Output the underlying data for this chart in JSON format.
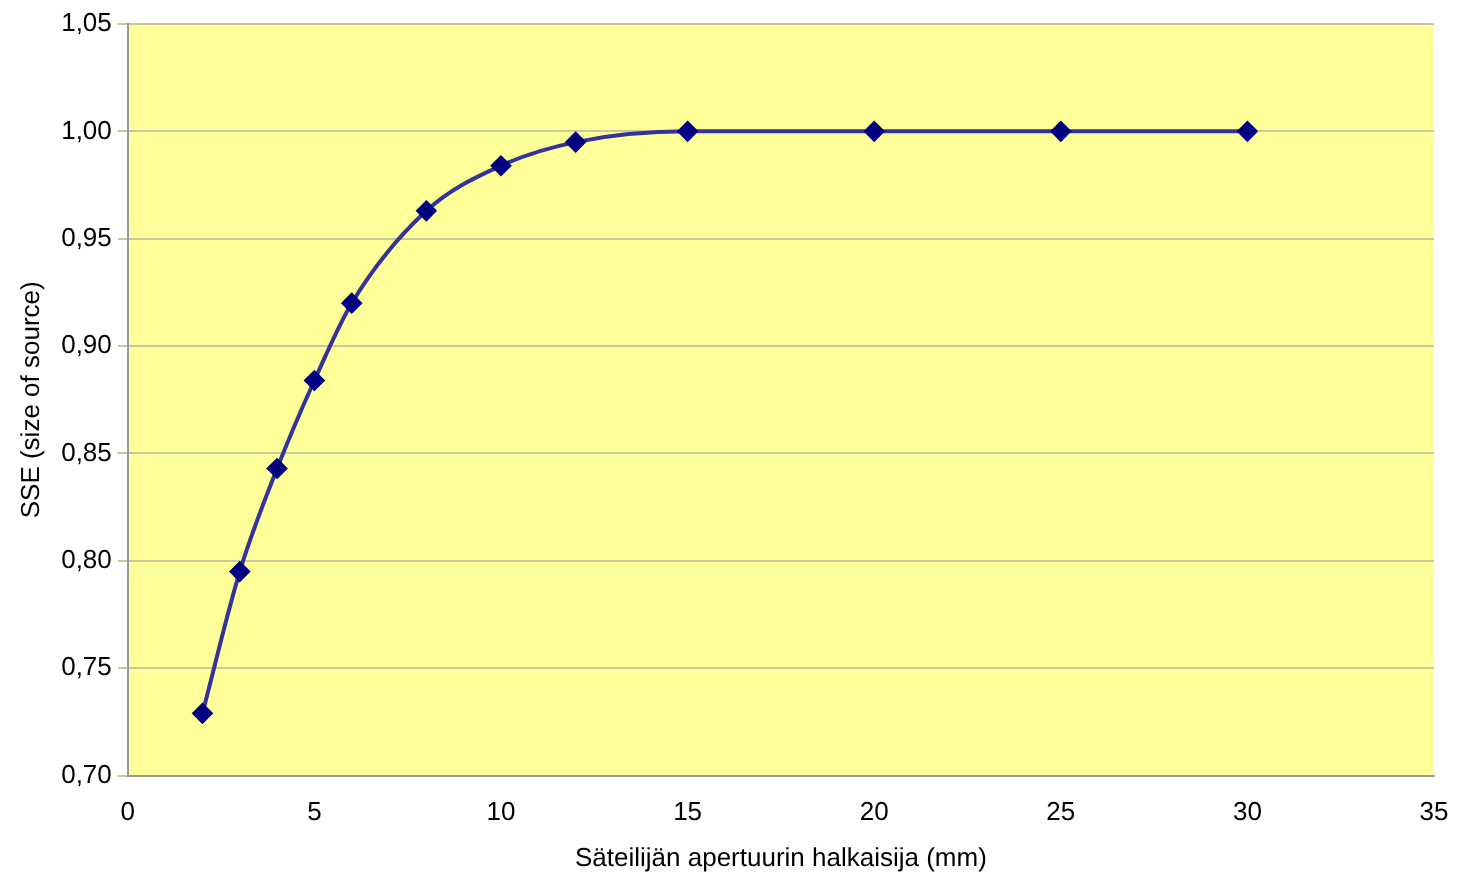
{
  "chart_data": {
    "type": "line",
    "xlabel": "Säteilijän apertuurin halkaisija (mm)",
    "ylabel": "SSE (size of source)",
    "x": [
      2,
      3,
      4,
      5,
      6,
      8,
      10,
      12,
      15,
      20,
      25,
      30
    ],
    "series": [
      {
        "color": "#333399",
        "values": [
          0.729,
          0.795,
          0.843,
          0.884,
          0.92,
          0.963,
          0.984,
          0.995,
          1.0,
          1.0,
          1.0,
          1.0
        ]
      }
    ],
    "xlim": [
      0,
      35
    ],
    "xticks": [
      0,
      5,
      10,
      15,
      20,
      25,
      30,
      35
    ],
    "ylim": [
      0.7,
      1.05
    ],
    "yticks": [
      {
        "value": 0.7,
        "label": "0,70"
      },
      {
        "value": 0.75,
        "label": "0,75"
      },
      {
        "value": 0.8,
        "label": "0,80"
      },
      {
        "value": 0.85,
        "label": "0,85"
      },
      {
        "value": 0.9,
        "label": "0,90"
      },
      {
        "value": 0.95,
        "label": "0,95"
      },
      {
        "value": 1.0,
        "label": "1,00"
      },
      {
        "value": 1.05,
        "label": "1,05"
      }
    ],
    "grid": "y",
    "legend": false,
    "marker": "diamond",
    "line_style": "solid"
  }
}
